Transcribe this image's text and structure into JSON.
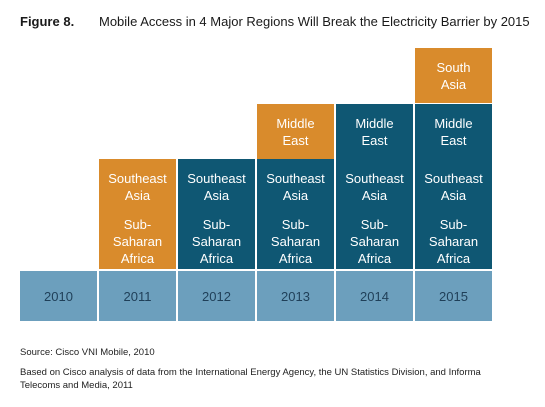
{
  "header": {
    "figure_number": "Figure 8.",
    "title": "Mobile Access in 4 Major Regions Will Break the Electricity Barrier by 2015"
  },
  "colors": {
    "newly_crossed": "#d98b2c",
    "already_crossed": "#0f5773",
    "year_bar": "#6c9fbd"
  },
  "years": [
    "2010",
    "2011",
    "2012",
    "2013",
    "2014",
    "2015"
  ],
  "regions": [
    "Sub-\nSaharan\nAfrica",
    "Southeast\nAsia",
    "Middle\nEast",
    "South\nAsia"
  ],
  "first_year_index": [
    1,
    1,
    3,
    5
  ],
  "footer": {
    "source": "Source: Cisco VNI Mobile, 2010",
    "note": "Based on Cisco analysis of data from the International Energy Agency, the UN Statistics Division, and Informa Telecoms and Media, 2011"
  }
}
